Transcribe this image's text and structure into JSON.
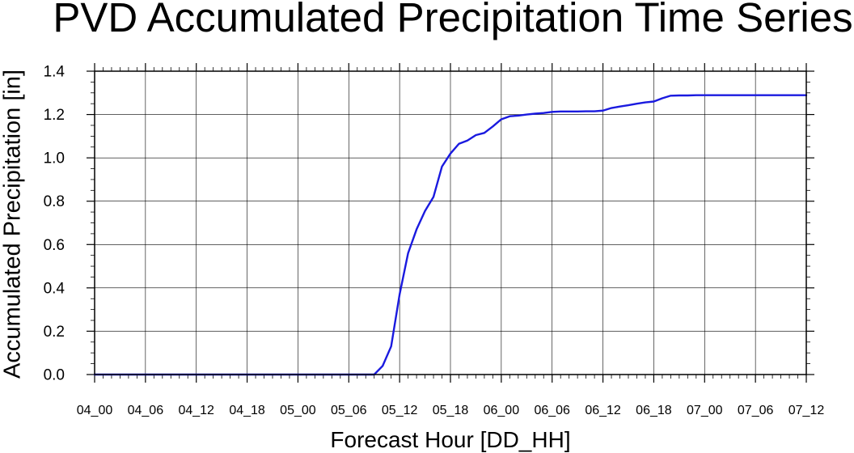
{
  "chart_data": {
    "type": "line",
    "title": "PVD Accumulated Precipitation Time Series",
    "xlabel": "Forecast Hour [DD_HH]",
    "ylabel": "Accumulated Precipitation [in]",
    "x_tick_labels": [
      "04_00",
      "04_06",
      "04_12",
      "04_18",
      "05_00",
      "05_06",
      "05_12",
      "05_18",
      "06_00",
      "06_06",
      "06_12",
      "06_18",
      "07_00",
      "07_06",
      "07_12"
    ],
    "y_tick_labels": [
      "0.0",
      "0.2",
      "0.4",
      "0.6",
      "0.8",
      "1.0",
      "1.2",
      "1.4"
    ],
    "xlim": [
      "04_00",
      "07_12"
    ],
    "ylim": [
      0,
      1.4
    ],
    "grid": true,
    "series": [
      {
        "color": "#1a1adf",
        "x": [
          "04_00",
          "05_09",
          "05_10",
          "05_11",
          "05_12",
          "05_13",
          "05_14",
          "05_15",
          "05_16",
          "05_17",
          "05_18",
          "05_19",
          "05_20",
          "05_21",
          "05_22",
          "05_23",
          "06_00",
          "06_01",
          "06_02",
          "06_03",
          "06_04",
          "06_05",
          "06_06",
          "06_07",
          "06_08",
          "06_09",
          "06_10",
          "06_11",
          "06_12",
          "06_13",
          "06_14",
          "06_15",
          "06_16",
          "06_17",
          "06_18",
          "06_19",
          "06_20",
          "06_21",
          "06_22",
          "06_23",
          "07_00",
          "07_12"
        ],
        "values": [
          0.0,
          0.0,
          0.04,
          0.13,
          0.37,
          0.56,
          0.67,
          0.755,
          0.82,
          0.96,
          1.02,
          1.065,
          1.08,
          1.105,
          1.115,
          1.145,
          1.178,
          1.192,
          1.195,
          1.2,
          1.204,
          1.207,
          1.212,
          1.214,
          1.214,
          1.214,
          1.215,
          1.215,
          1.218,
          1.23,
          1.237,
          1.243,
          1.25,
          1.256,
          1.26,
          1.275,
          1.287,
          1.288,
          1.288,
          1.289,
          1.289,
          1.289
        ]
      }
    ]
  }
}
